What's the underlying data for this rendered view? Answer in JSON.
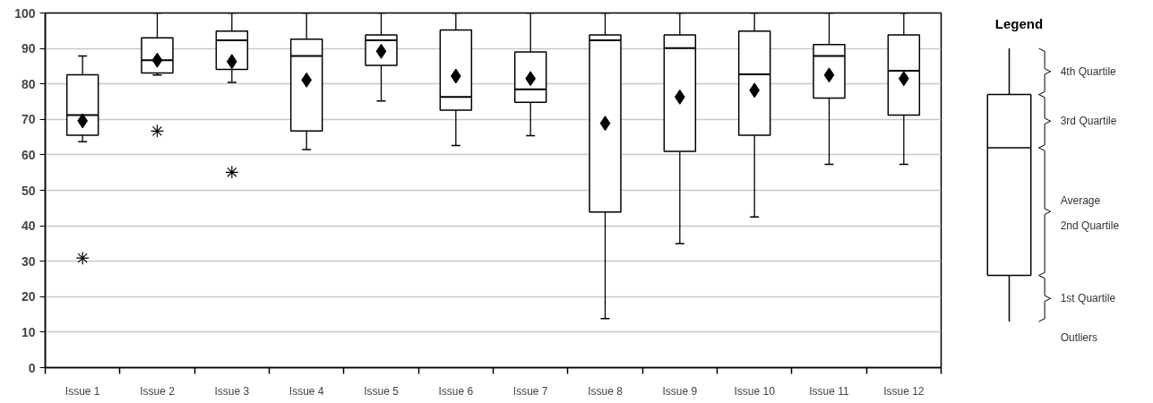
{
  "chart_data": {
    "type": "box",
    "categories": [
      "Issue 1",
      "Issue 2",
      "Issue 3",
      "Issue 4",
      "Issue 5",
      "Issue 6",
      "Issue 7",
      "Issue 8",
      "Issue 9",
      "Issue 10",
      "Issue 11",
      "Issue 12"
    ],
    "boxes": [
      {
        "low": 63.7,
        "q1": 65.5,
        "median": 71.2,
        "q3": 82.6,
        "high": 87.9,
        "mean": 69.6,
        "outliers": [
          30.9
        ]
      },
      {
        "low": 82.5,
        "q1": 83.1,
        "median": 86.7,
        "q3": 93.0,
        "high": 100,
        "mean": 86.7,
        "outliers": [
          66.7
        ]
      },
      {
        "low": 80.4,
        "q1": 84.1,
        "median": 92.3,
        "q3": 94.9,
        "high": 100,
        "mean": 86.3,
        "outliers": [
          55.1
        ]
      },
      {
        "low": 61.5,
        "q1": 66.7,
        "median": 87.9,
        "q3": 92.6,
        "high": 100,
        "mean": 81.1
      },
      {
        "low": 75.2,
        "q1": 85.2,
        "median": 92.3,
        "q3": 93.8,
        "high": 100,
        "mean": 89.2
      },
      {
        "low": 62.6,
        "q1": 72.6,
        "median": 76.3,
        "q3": 95.2,
        "high": 100,
        "mean": 82.2
      },
      {
        "low": 65.4,
        "q1": 74.8,
        "median": 78.5,
        "q3": 89.0,
        "high": 100,
        "mean": 81.5
      },
      {
        "low": 13.8,
        "q1": 43.9,
        "median": 92.3,
        "q3": 93.8,
        "high": 100,
        "mean": 68.9
      },
      {
        "low": 35.0,
        "q1": 61.0,
        "median": 90.1,
        "q3": 93.8,
        "high": 100,
        "mean": 76.3
      },
      {
        "low": 42.5,
        "q1": 65.5,
        "median": 82.7,
        "q3": 94.9,
        "high": 100,
        "mean": 78.2
      },
      {
        "low": 57.3,
        "q1": 76.0,
        "median": 87.9,
        "q3": 91.1,
        "high": 100,
        "mean": 82.5
      },
      {
        "low": 57.3,
        "q1": 71.2,
        "median": 83.7,
        "q3": 93.8,
        "high": 100,
        "mean": 81.5
      }
    ],
    "ylim": [
      0,
      100
    ],
    "yticks": [
      0,
      10,
      20,
      30,
      40,
      50,
      60,
      70,
      80,
      90,
      100
    ],
    "grid": "y",
    "legend_title": "Legend",
    "annotations": [
      "4th Quartile",
      "3rd Quartile",
      "Average",
      "2nd Quartile",
      "1st Quartile",
      "Outliers"
    ]
  }
}
